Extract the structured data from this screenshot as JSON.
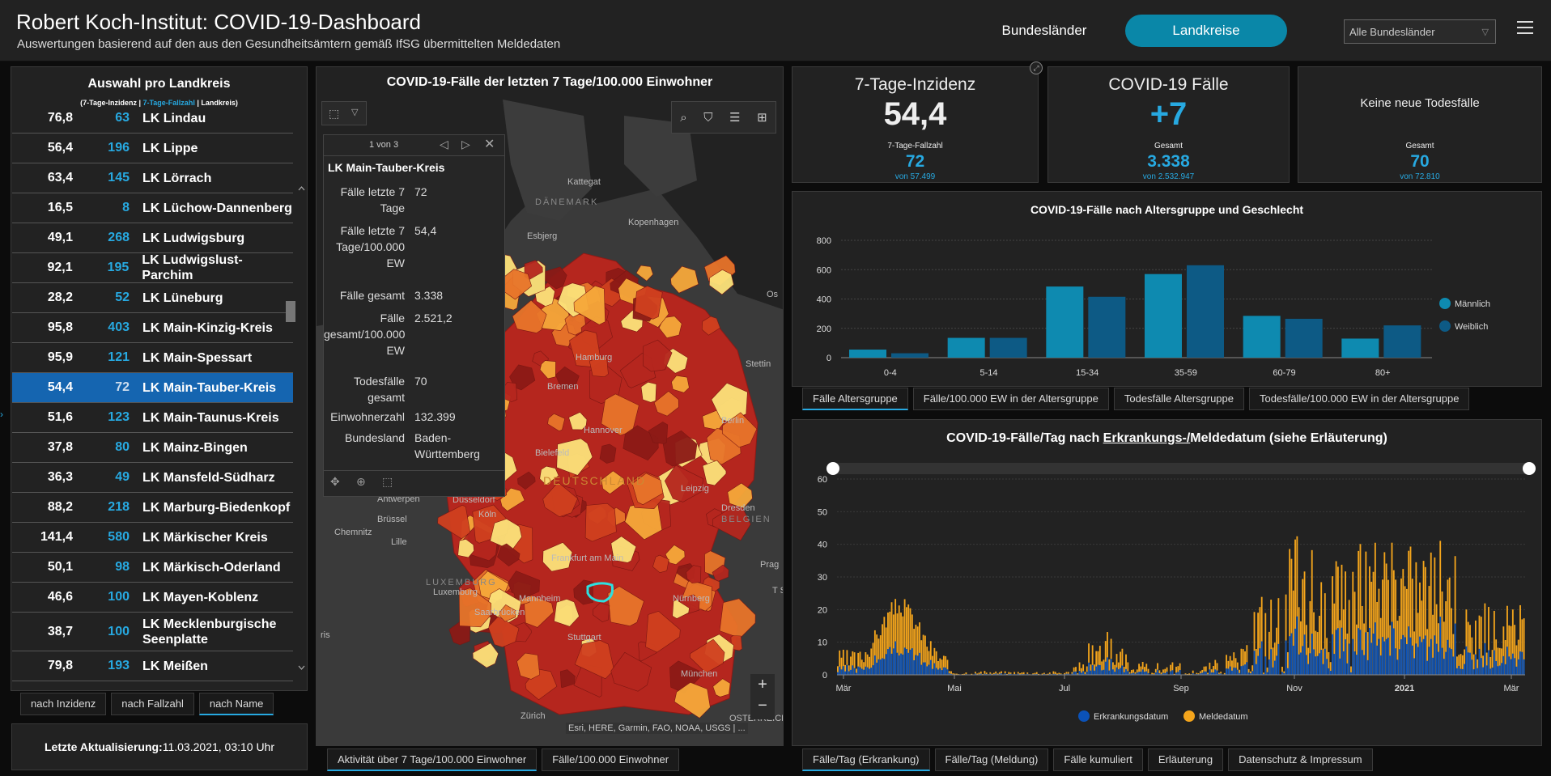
{
  "header": {
    "title": "Robert Koch-Institut: COVID-19-Dashboard",
    "subtitle": "Auswertungen basierend auf den aus den Gesundheitsämtern gemäß IfSG übermittelten Meldedaten",
    "nav_bundeslaender": "Bundesländer",
    "nav_landkreise": "Landkreise",
    "filter_value": "Alle Bundesländer"
  },
  "left": {
    "title": "Auswahl pro Landkreis",
    "sub_a": "(7-Tage-Inzidenz | ",
    "sub_b": "7-Tage-Fallzahl",
    "sub_c": " | Landkreis)",
    "rows": [
      {
        "inz": "76,8",
        "fall": "63",
        "name": "LK Lindau"
      },
      {
        "inz": "56,4",
        "fall": "196",
        "name": "LK Lippe"
      },
      {
        "inz": "63,4",
        "fall": "145",
        "name": "LK Lörrach"
      },
      {
        "inz": "16,5",
        "fall": "8",
        "name": "LK Lüchow-Dannenberg"
      },
      {
        "inz": "49,1",
        "fall": "268",
        "name": "LK Ludwigsburg"
      },
      {
        "inz": "92,1",
        "fall": "195",
        "name": "LK Ludwigslust-Parchim"
      },
      {
        "inz": "28,2",
        "fall": "52",
        "name": "LK Lüneburg"
      },
      {
        "inz": "95,8",
        "fall": "403",
        "name": "LK Main-Kinzig-Kreis"
      },
      {
        "inz": "95,9",
        "fall": "121",
        "name": "LK Main-Spessart"
      },
      {
        "inz": "54,4",
        "fall": "72",
        "name": "LK Main-Tauber-Kreis"
      },
      {
        "inz": "51,6",
        "fall": "123",
        "name": "LK Main-Taunus-Kreis"
      },
      {
        "inz": "37,8",
        "fall": "80",
        "name": "LK Mainz-Bingen"
      },
      {
        "inz": "36,3",
        "fall": "49",
        "name": "LK Mansfeld-Südharz"
      },
      {
        "inz": "88,2",
        "fall": "218",
        "name": "LK Marburg-Biedenkopf"
      },
      {
        "inz": "141,4",
        "fall": "580",
        "name": "LK Märkischer Kreis"
      },
      {
        "inz": "50,1",
        "fall": "98",
        "name": "LK Märkisch-Oderland"
      },
      {
        "inz": "46,6",
        "fall": "100",
        "name": "LK Mayen-Koblenz"
      },
      {
        "inz": "38,7",
        "fall": "100",
        "name": "LK Mecklenburgische Seenplatte"
      },
      {
        "inz": "79,8",
        "fall": "193",
        "name": "LK Meißen"
      }
    ],
    "tabs": [
      "nach Inzidenz",
      "nach Fallzahl",
      "nach Name"
    ],
    "update_label": "Letzte Aktualisierung: ",
    "update_value": "11.03.2021, 03:10 Uhr"
  },
  "map": {
    "title": "COVID-19-Fälle der letzten 7 Tage/100.000 Einwohner",
    "attribution": "Esri, HERE, Garmin, FAO, NOAA, USGS | ...",
    "tabs": [
      "Aktivität über 7 Tage/100.000 Einwohner",
      "Fälle/100.000 Einwohner"
    ],
    "places": [
      "Kattegat",
      "DÄNEMARK",
      "Esbjerg",
      "Kopenhagen",
      "Hamburg",
      "Stettin",
      "Bremen",
      "Berlin",
      "Hannover",
      "Bielefeld",
      "DEUTSCHLAND",
      "Leipzig",
      "Düsseldorf",
      "Antwerpen",
      "Köln",
      "Dresden",
      "Brüssel",
      "Chemnitz",
      "Lille",
      "BELGIEN",
      "Frankfurt am Main",
      "Prag",
      "LUXEMBURG",
      "Luxemburg",
      "Mannheim",
      "Nürnberg",
      "Saarbrücken",
      "Stuttgart",
      "München",
      "Zürich",
      "Os",
      "ris",
      "T S",
      "OSTERREICH"
    ],
    "popup": {
      "pager": "1 von 3",
      "title": "LK Main-Tauber-Kreis",
      "fields": [
        {
          "k": "Fälle letzte 7 Tage",
          "v": "72"
        },
        {
          "k": "Fälle letzte 7 Tage/100.000 EW",
          "v": "54,4"
        },
        {
          "k": "Fälle gesamt",
          "v": "3.338"
        },
        {
          "k": "Fälle gesamt/100.000 EW",
          "v": "2.521,2"
        },
        {
          "k": "Todesfälle gesamt",
          "v": "70"
        },
        {
          "k": "Einwohnerzahl",
          "v": "132.399"
        },
        {
          "k": "Bundesland",
          "v": "Baden-Württemberg"
        }
      ]
    },
    "zoom_in": "+",
    "zoom_out": "−"
  },
  "kpi": {
    "inz": {
      "title": "7-Tage-Inzidenz",
      "value": "54,4",
      "sub_label": "7-Tage-Fallzahl",
      "sub_value": "72",
      "sub_total": "von 57.499"
    },
    "cases": {
      "title": "COVID-19 Fälle",
      "value": "+7",
      "sub_label": "Gesamt",
      "sub_value": "3.338",
      "sub_total": "von 2.532.947"
    },
    "deaths": {
      "title": "Keine neue Todesfälle",
      "sub_label": "Gesamt",
      "sub_value": "70",
      "sub_total": "von 72.810"
    }
  },
  "colors": {
    "accent": "#27a9e1",
    "male": "#0e8ab0",
    "female": "#0d5a85",
    "erkrankung": "#0b52b8",
    "melde": "#f4a51c",
    "selected_row": "#1565b0"
  },
  "chart_data": [
    {
      "type": "bar",
      "title": "COVID-19-Fälle nach Altersgruppe und Geschlecht",
      "categories": [
        "0-4",
        "5-14",
        "15-34",
        "35-59",
        "60-79",
        "80+"
      ],
      "series": [
        {
          "name": "Männlich",
          "values": [
            55,
            135,
            485,
            570,
            285,
            130
          ]
        },
        {
          "name": "Weiblich",
          "values": [
            30,
            135,
            415,
            630,
            265,
            220
          ]
        }
      ],
      "ylim": [
        0,
        800
      ],
      "yticks": [
        0,
        200,
        400,
        600,
        800
      ],
      "legend": "right",
      "grid": true
    },
    {
      "type": "bar",
      "title_a": "COVID-19-Fälle/Tag nach ",
      "title_link": "Erkrankungs-/",
      "title_b": "Meldedatum (siehe Erläuterung)",
      "xticks": [
        "Mär",
        "Mai",
        "Jul",
        "Sep",
        "Nov",
        "2021",
        "Mär"
      ],
      "ylim": [
        0,
        60
      ],
      "yticks": [
        0,
        10,
        20,
        30,
        40,
        50,
        60
      ],
      "series": [
        {
          "name": "Erkrankungsdatum"
        },
        {
          "name": "Meldedatum"
        }
      ],
      "legend": "bottom",
      "stacked": true,
      "grid": true
    }
  ],
  "chart1_tabs": [
    "Fälle Altersgruppe",
    "Fälle/100.000 EW in der Altersgruppe",
    "Todesfälle Altersgruppe",
    "Todesfälle/100.000 EW in der Altersgruppe"
  ],
  "chart2_tabs": [
    "Fälle/Tag (Erkrankung)",
    "Fälle/Tag (Meldung)",
    "Fälle kumuliert",
    "Erläuterung",
    "Datenschutz & Impressum"
  ]
}
